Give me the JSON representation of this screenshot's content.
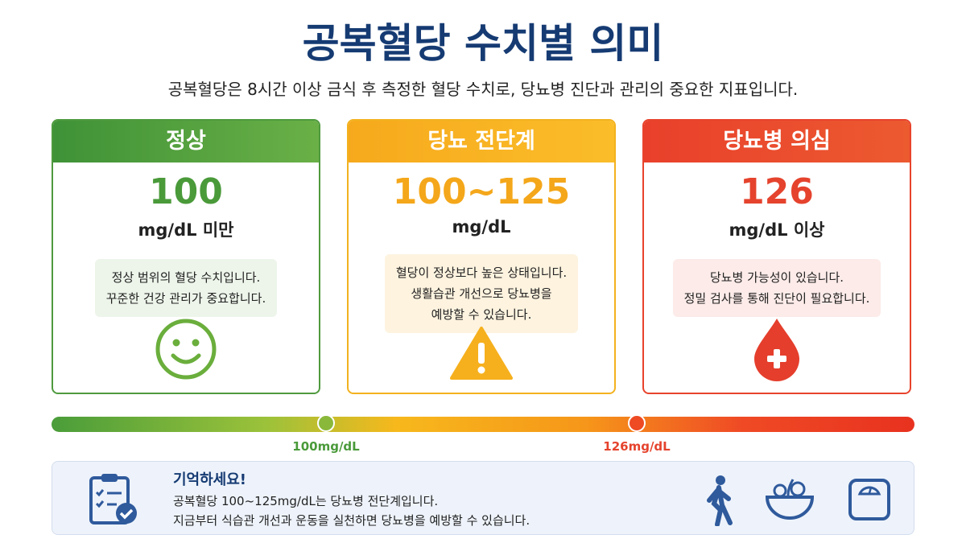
{
  "header": {
    "title": "공복혈당 수치별 의미",
    "subtitle": "공복혈당은 8시간 이상 금식 후 측정한 혈당 수치로, 당뇨병 진단과 관리의 중요한 지표입니다."
  },
  "cards": [
    {
      "title": "정상",
      "value": "100",
      "unit": "mg/dL 미만",
      "lines": [
        "정상 범위의 혈당 수치입니다.",
        "꾸준한 건강 관리가 중요합니다."
      ]
    },
    {
      "title": "당뇨 전단계",
      "value": "100~125",
      "unit": "mg/dL",
      "lines": [
        "혈당이 정상보다 높은 상태입니다.",
        "생활습관 개선으로 당뇨병을",
        "예방할 수 있습니다."
      ]
    },
    {
      "title": "당뇨병 의심",
      "value": "126",
      "unit": "mg/dL 이상",
      "lines": [
        "당뇨병 가능성이 있습니다.",
        "정밀 검사를 통해 진단이 필요합니다."
      ]
    }
  ],
  "scale": {
    "markers": [
      "100mg/dL",
      "126mg/dL"
    ]
  },
  "note": {
    "title": "기억하세요!",
    "lines": [
      "공복혈당 100~125mg/dL는 당뇨병 전단계입니다.",
      "지금부터 식습관 개선과 운동을 실천하면 당뇨병을 예방할 수 있습니다."
    ]
  }
}
